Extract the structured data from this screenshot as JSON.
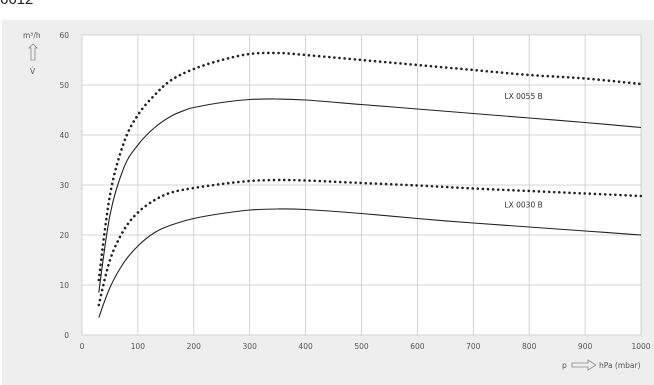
{
  "figure_code": "6612",
  "chart_data": {
    "type": "line",
    "y_unit_label": "m³/h",
    "y_symbol": "V̇",
    "x_symbol": "p",
    "x_unit_label": "hPa (mbar)",
    "xlim": [
      0,
      1000
    ],
    "ylim": [
      0,
      60
    ],
    "x_ticks": [
      0,
      100,
      200,
      300,
      400,
      500,
      600,
      700,
      800,
      900,
      1000
    ],
    "y_ticks": [
      0,
      10,
      20,
      30,
      40,
      50,
      60
    ],
    "grid": true,
    "annotations": [
      {
        "text": "LX 0055 B",
        "x": 790,
        "y": 47.2
      },
      {
        "text": "LX 0030 B",
        "x": 790,
        "y": 25.5
      }
    ],
    "series": [
      {
        "style": "dotted",
        "color": "#222222",
        "x": [
          30,
          50,
          75,
          100,
          130,
          160,
          200,
          250,
          300,
          350,
          400,
          500,
          600,
          700,
          800,
          900,
          1000
        ],
        "y": [
          11,
          28,
          38.5,
          44,
          48,
          51,
          53.2,
          55,
          56.2,
          56.4,
          56,
          55,
          54,
          53,
          52,
          51.3,
          50.2
        ]
      },
      {
        "style": "solid",
        "color": "#222222",
        "x": [
          30,
          50,
          75,
          100,
          130,
          160,
          185,
          200,
          250,
          300,
          350,
          400,
          500,
          600,
          700,
          800,
          900,
          1000
        ],
        "y": [
          8.5,
          24,
          33.5,
          38,
          41.5,
          43.8,
          45,
          45.5,
          46.5,
          47.1,
          47.2,
          47,
          46.1,
          45.2,
          44.3,
          43.4,
          42.5,
          41.5
        ]
      },
      {
        "style": "dotted",
        "color": "#222222",
        "x": [
          30,
          50,
          75,
          100,
          130,
          160,
          200,
          250,
          300,
          350,
          400,
          500,
          600,
          700,
          800,
          900,
          1000
        ],
        "y": [
          6,
          15,
          21,
          24.5,
          27,
          28.5,
          29.4,
          30.2,
          30.8,
          31,
          30.9,
          30.4,
          29.9,
          29.3,
          28.8,
          28.3,
          27.8
        ]
      },
      {
        "style": "solid",
        "color": "#222222",
        "x": [
          30,
          50,
          75,
          100,
          130,
          160,
          200,
          250,
          300,
          350,
          400,
          500,
          600,
          700,
          800,
          900,
          1000
        ],
        "y": [
          3.5,
          9.5,
          14.5,
          17.8,
          20.5,
          22,
          23.3,
          24.3,
          25,
          25.2,
          25.1,
          24.3,
          23.3,
          22.4,
          21.6,
          20.8,
          20
        ]
      }
    ]
  }
}
